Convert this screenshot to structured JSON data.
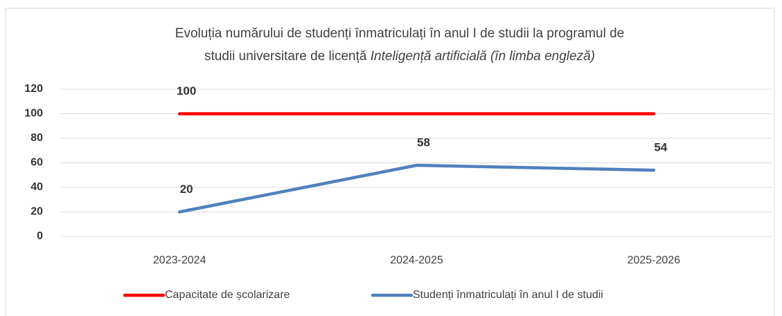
{
  "chart_data": {
    "type": "line",
    "title_line1": "Evoluția numărului de studenți înmatriculați în anul I de studii la programul de",
    "title_line2": "studii universitare de licență",
    "title_italic": "Inteligență artificială (în limba engleză)",
    "categories": [
      "2023-2024",
      "2024-2025",
      "2025-2026"
    ],
    "series": [
      {
        "name": "Capacitate de școlarizare",
        "color": "#ff0000",
        "values": [
          100,
          100,
          100
        ],
        "data_labels": [
          true,
          false,
          false
        ]
      },
      {
        "name": "Studenți înmatriculați în anul I de studii",
        "color": "#4f81bd",
        "values": [
          20,
          58,
          54
        ],
        "data_labels": [
          true,
          true,
          true
        ]
      }
    ],
    "ylim": [
      0,
      120
    ],
    "yticks": [
      0,
      20,
      40,
      60,
      80,
      100,
      120
    ],
    "grid": true,
    "legend": "bottom"
  }
}
